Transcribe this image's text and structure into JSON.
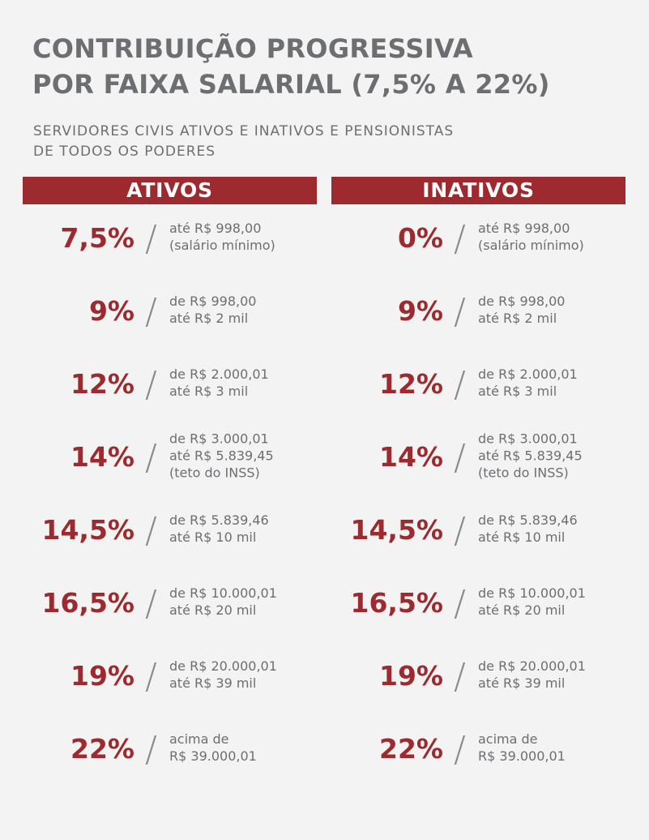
{
  "title": {
    "line1": "CONTRIBUIÇÃO PROGRESSIVA",
    "line2": "POR FAIXA SALARIAL (7,5% A 22%)"
  },
  "subtitle": {
    "line1": "SERVIDORES CIVIS ATIVOS E INATIVOS E PENSIONISTAS",
    "line2": "DE TODOS OS PODERES"
  },
  "columns": [
    {
      "header": "ATIVOS",
      "accent_color": "#9d2a2e",
      "rows": [
        {
          "pct": "7,5%",
          "lines": [
            "até R$ 998,00",
            "(salário mínimo)"
          ]
        },
        {
          "pct": "9%",
          "lines": [
            "de R$ 998,00",
            "até R$ 2 mil"
          ]
        },
        {
          "pct": "12%",
          "lines": [
            "de R$ 2.000,01",
            "até R$ 3 mil"
          ]
        },
        {
          "pct": "14%",
          "lines": [
            "de R$ 3.000,01",
            "até R$ 5.839,45",
            "(teto do INSS)"
          ]
        },
        {
          "pct": "14,5%",
          "lines": [
            "de R$ 5.839,46",
            "até R$ 10 mil"
          ]
        },
        {
          "pct": "16,5%",
          "lines": [
            "de R$ 10.000,01",
            "até R$ 20 mil"
          ]
        },
        {
          "pct": "19%",
          "lines": [
            "de R$ 20.000,01",
            "até R$ 39 mil"
          ]
        },
        {
          "pct": "22%",
          "lines": [
            "acima de",
            "R$ 39.000,01"
          ]
        }
      ]
    },
    {
      "header": "INATIVOS",
      "accent_color": "#9d2a2e",
      "rows": [
        {
          "pct": "0%",
          "lines": [
            "até R$ 998,00",
            "(salário mínimo)"
          ]
        },
        {
          "pct": "9%",
          "lines": [
            "de R$ 998,00",
            "até R$ 2 mil"
          ]
        },
        {
          "pct": "12%",
          "lines": [
            "de R$ 2.000,01",
            "até R$ 3 mil"
          ]
        },
        {
          "pct": "14%",
          "lines": [
            "de R$ 3.000,01",
            "até R$ 5.839,45",
            "(teto do INSS)"
          ]
        },
        {
          "pct": "14,5%",
          "lines": [
            "de R$ 5.839,46",
            "até R$ 10 mil"
          ]
        },
        {
          "pct": "16,5%",
          "lines": [
            "de R$ 10.000,01",
            "até R$ 20 mil"
          ]
        },
        {
          "pct": "19%",
          "lines": [
            "de R$ 20.000,01",
            "até R$ 39 mil"
          ]
        },
        {
          "pct": "22%",
          "lines": [
            "acima de",
            "R$ 39.000,01"
          ]
        }
      ]
    }
  ]
}
